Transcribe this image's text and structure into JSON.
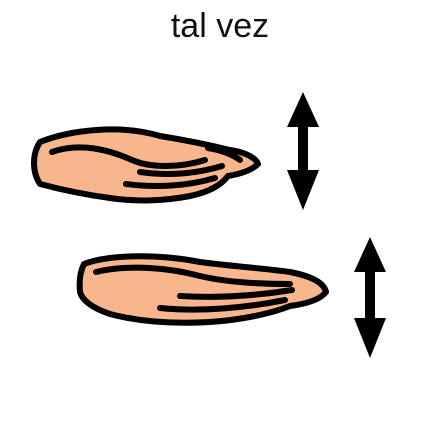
{
  "card": {
    "caption": "tal vez"
  },
  "colors": {
    "skin": "#f7b68c",
    "outline": "#000000",
    "background": "#ffffff"
  },
  "icons": {
    "upper_hand": "open-hand-palm-up-icon",
    "lower_hand": "open-hand-palm-up-icon",
    "upper_arrow": "up-down-arrow-icon",
    "lower_arrow": "up-down-arrow-icon"
  }
}
